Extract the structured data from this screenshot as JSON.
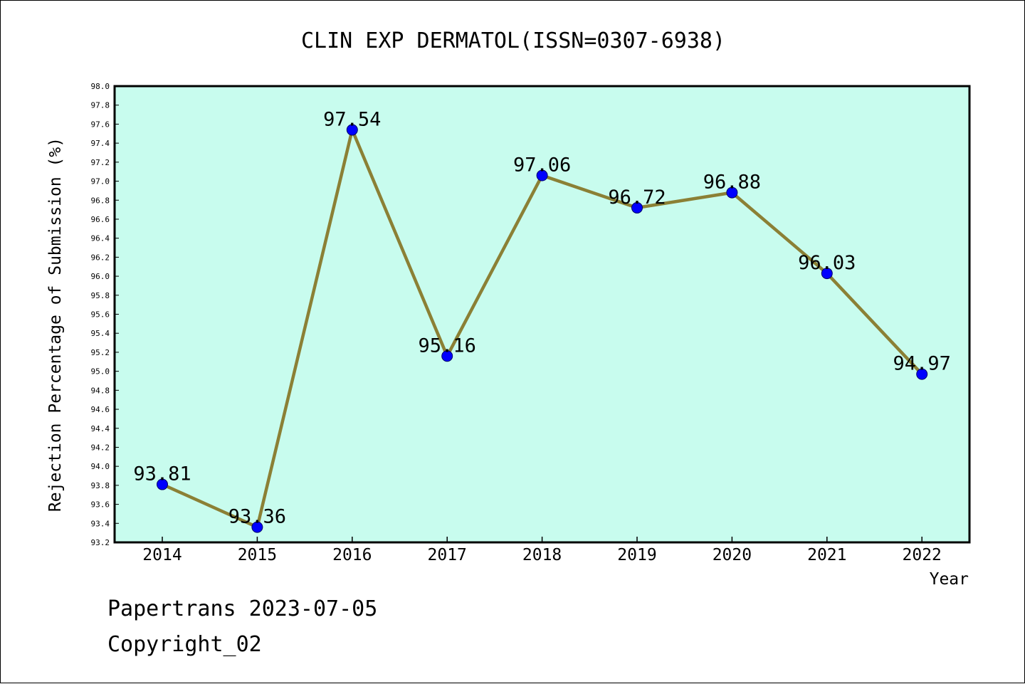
{
  "chart_data": {
    "type": "line",
    "title": "CLIN EXP DERMATOL(ISSN=0307-6938)",
    "xlabel": "Year",
    "ylabel": "Rejection Percentage of Submission (%)",
    "categories": [
      "2014",
      "2015",
      "2016",
      "2017",
      "2018",
      "2019",
      "2020",
      "2021",
      "2022"
    ],
    "series": [
      {
        "values": [
          93.81,
          93.36,
          97.54,
          95.16,
          97.06,
          96.72,
          96.88,
          96.03,
          94.97
        ],
        "data_labels": [
          "93.81",
          "93.36",
          "97.54",
          "95.16",
          "97.06",
          "96.72",
          "96.88",
          "96.03",
          "94.97"
        ]
      }
    ],
    "ylim": [
      93.2,
      98.0
    ],
    "y_ticks": [
      "93.2",
      "93.4",
      "93.6",
      "93.8",
      "94.0",
      "94.2",
      "94.4",
      "94.6",
      "94.8",
      "95.0",
      "95.2",
      "95.4",
      "95.6",
      "95.8",
      "96.0",
      "96.2",
      "96.4",
      "96.6",
      "96.8",
      "97.0",
      "97.2",
      "97.4",
      "97.6",
      "97.8",
      "98.0"
    ],
    "grid": false,
    "legend": "none",
    "colors": {
      "plot_background": "#c8fcee",
      "line": "#8b8035",
      "marker": "#0000ff",
      "axis": "#000000"
    }
  },
  "footer": {
    "line1": "Papertrans 2023-07-05",
    "line2": "Copyright_02"
  }
}
